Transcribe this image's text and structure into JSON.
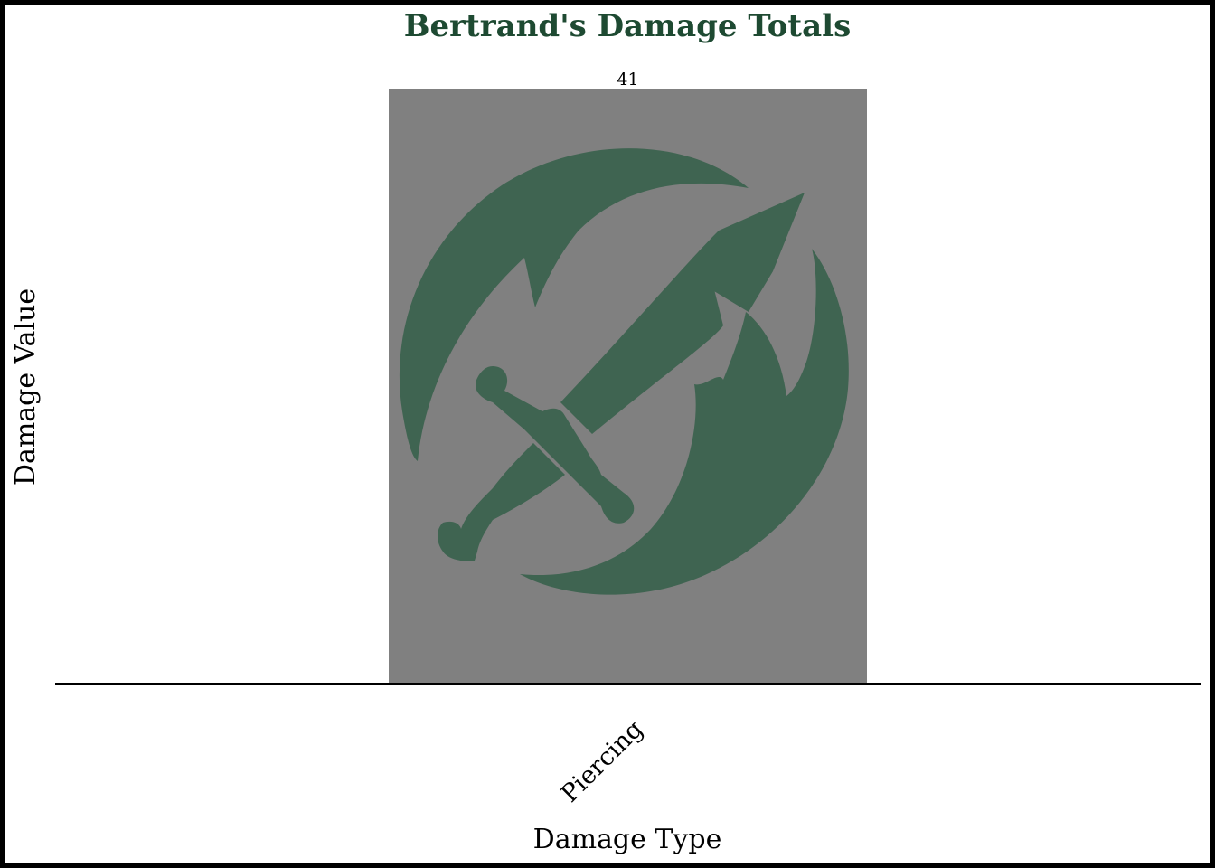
{
  "chart_data": {
    "type": "bar",
    "title": "Bertrand's Damage Totals",
    "xlabel": "Damage Type",
    "ylabel": "Damage Value",
    "categories": [
      "Piercing"
    ],
    "values": [
      41
    ],
    "data_labels": [
      "41"
    ],
    "ylim": [
      0,
      41
    ],
    "grid": false,
    "legend": "none",
    "bar_icon": "sword-slash-icon"
  },
  "colors": {
    "title": "#1e4a32",
    "bar_fill": "#808080",
    "icon_fill": "#3f6451",
    "axis_line": "#000000",
    "frame": "#000000",
    "background": "#ffffff"
  }
}
